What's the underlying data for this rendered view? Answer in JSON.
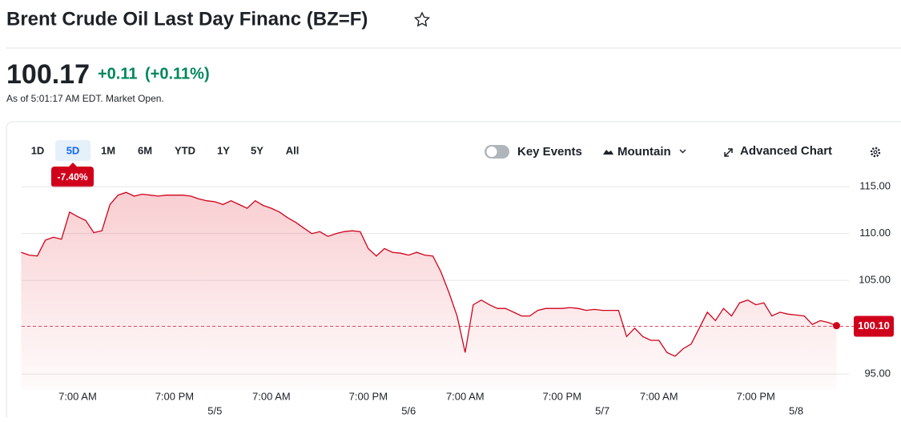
{
  "header": {
    "title": "Brent Crude Oil Last Day Financ (BZ=F)",
    "price": "100.17",
    "change": "+0.11",
    "change_percent": "(+0.11%)",
    "as_of": "As of 5:01:17 AM EDT. Market Open."
  },
  "toolbar": {
    "ranges": [
      "1D",
      "5D",
      "1M",
      "6M",
      "YTD",
      "1Y",
      "5Y",
      "All"
    ],
    "selected_range": "5D",
    "range_change": "-7.40%",
    "key_events": "Key Events",
    "chart_type": "Mountain",
    "advanced_chart": "Advanced Chart"
  },
  "chart_data": {
    "type": "area",
    "color": "#d0021b",
    "categories": [
      null,
      null,
      null,
      null,
      null,
      null,
      null,
      "7:00 AM",
      null,
      null,
      null,
      null,
      null,
      null,
      null,
      null,
      null,
      null,
      null,
      "7:00 PM",
      null,
      null,
      null,
      null,
      null,
      null,
      null,
      null,
      null,
      null,
      null,
      "7:00 AM",
      null,
      null,
      null,
      null,
      null,
      null,
      null,
      null,
      null,
      null,
      null,
      "7:00 PM",
      null,
      null,
      null,
      null,
      null,
      null,
      null,
      null,
      null,
      null,
      null,
      "7:00 AM",
      null,
      null,
      null,
      null,
      null,
      null,
      null,
      null,
      null,
      null,
      null,
      "7:00 PM",
      null,
      null,
      null,
      null,
      null,
      null,
      null,
      null,
      null,
      null,
      null,
      "7:00 AM",
      null,
      null,
      null,
      null,
      null,
      null,
      null,
      null,
      null,
      null,
      null,
      "7:00 PM",
      null,
      null,
      null,
      null,
      null,
      null,
      null,
      null,
      null,
      null
    ],
    "dates": [
      null,
      null,
      null,
      null,
      null,
      null,
      null,
      null,
      null,
      null,
      null,
      null,
      null,
      null,
      null,
      null,
      null,
      null,
      null,
      null,
      null,
      null,
      null,
      null,
      "5/5",
      null,
      null,
      null,
      null,
      null,
      null,
      null,
      null,
      null,
      null,
      null,
      null,
      null,
      null,
      null,
      null,
      null,
      null,
      null,
      null,
      null,
      null,
      null,
      "5/6",
      null,
      null,
      null,
      null,
      null,
      null,
      null,
      null,
      null,
      null,
      null,
      null,
      null,
      null,
      null,
      null,
      null,
      null,
      null,
      null,
      null,
      null,
      null,
      "5/7",
      null,
      null,
      null,
      null,
      null,
      null,
      null,
      null,
      null,
      null,
      null,
      null,
      null,
      null,
      null,
      null,
      null,
      null,
      null,
      null,
      null,
      null,
      null,
      "5/8",
      null,
      null,
      null,
      null,
      null
    ],
    "values": [
      108.0,
      107.7,
      107.6,
      109.3,
      109.6,
      109.4,
      112.3,
      111.8,
      111.4,
      110.1,
      110.3,
      113.1,
      114.1,
      114.4,
      114.0,
      114.2,
      114.1,
      114.0,
      114.1,
      114.1,
      114.1,
      114.0,
      113.7,
      113.5,
      113.4,
      113.1,
      113.5,
      113.1,
      112.7,
      113.5,
      113.0,
      112.7,
      112.3,
      111.7,
      111.2,
      110.6,
      110.0,
      110.2,
      109.7,
      110.0,
      110.2,
      110.3,
      110.2,
      108.4,
      107.6,
      108.4,
      108.0,
      107.9,
      107.7,
      108.0,
      107.7,
      107.6,
      105.9,
      103.7,
      101.2,
      97.3,
      102.4,
      102.9,
      102.4,
      102.0,
      102.0,
      101.6,
      101.2,
      101.2,
      101.8,
      102.0,
      102.0,
      102.0,
      102.1,
      102.0,
      101.8,
      101.9,
      101.8,
      101.8,
      101.8,
      99.0,
      99.9,
      99.0,
      98.6,
      98.6,
      97.3,
      96.9,
      97.7,
      98.2,
      99.9,
      101.6,
      100.7,
      102.0,
      101.2,
      102.6,
      102.9,
      102.4,
      102.6,
      101.2,
      101.6,
      101.4,
      101.3,
      101.2,
      100.3,
      100.7,
      100.5,
      100.17
    ],
    "ylim": [
      93.3,
      115.7
    ],
    "yticks": [
      {
        "value": 95,
        "label": "95.00"
      },
      {
        "value": 105,
        "label": "105.00"
      },
      {
        "value": 110,
        "label": "110.00"
      },
      {
        "value": 115,
        "label": "115.00"
      }
    ],
    "reference_line": {
      "value": 100.1,
      "label": "100.10"
    },
    "grid": true
  }
}
